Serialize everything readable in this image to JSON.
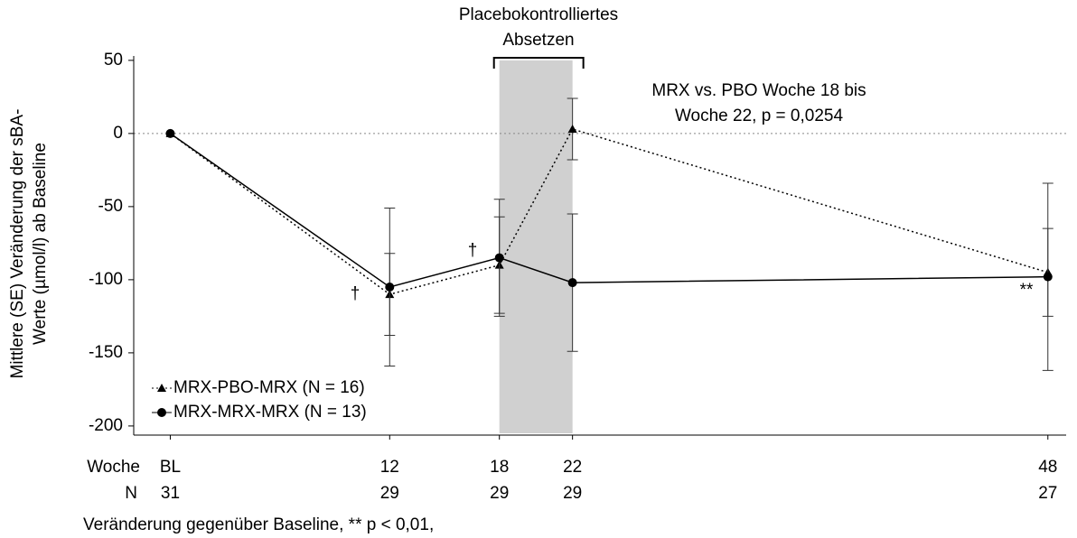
{
  "chart_data": {
    "type": "line",
    "y_label_lines": [
      "Mittlere (SE) Veränderung der sBA-",
      "Werte (µmol/l) ab Baseline"
    ],
    "x": [
      0,
      12,
      18,
      22,
      48
    ],
    "xlim": [
      -2,
      49
    ],
    "xticks": [
      {
        "value": 0,
        "label": "BL"
      },
      12,
      18,
      22,
      48
    ],
    "x_row_label": "Woche",
    "n_label": "N",
    "n_values": [
      31,
      29,
      29,
      29,
      27
    ],
    "ylim": [
      -205,
      53
    ],
    "yticks": [
      50,
      0,
      -50,
      -100,
      -150,
      -200
    ],
    "zero_line": true,
    "shade": {
      "x": [
        18,
        22
      ],
      "top": 50,
      "color": "#d0d0d0",
      "label_lines": [
        "Placebokontrolliertes",
        "Absetzen"
      ]
    },
    "annotation_lines": [
      "MRX vs. PBO Woche 18 bis",
      "Woche 22, p = 0,0254"
    ],
    "markers_text": [
      "†",
      "†",
      "**"
    ],
    "footnote": "Veränderung gegenüber Baseline, ** p < 0,01,",
    "legend": "lower left",
    "series": [
      {
        "name": "MRX-PBO-MRX (N = 16)",
        "color": "#000000",
        "line_style": "dotted",
        "marker": "triangle",
        "values": [
          0,
          -110,
          -90,
          3,
          -95
        ],
        "errors": [
          0,
          28,
          33,
          21,
          30
        ]
      },
      {
        "name": "MRX-MRX-MRX (N = 13)",
        "color": "#000000",
        "line_style": "solid",
        "marker": "circle",
        "values": [
          0,
          -105,
          -85,
          -102,
          -98
        ],
        "errors": [
          0,
          54,
          40,
          47,
          64
        ]
      }
    ]
  }
}
